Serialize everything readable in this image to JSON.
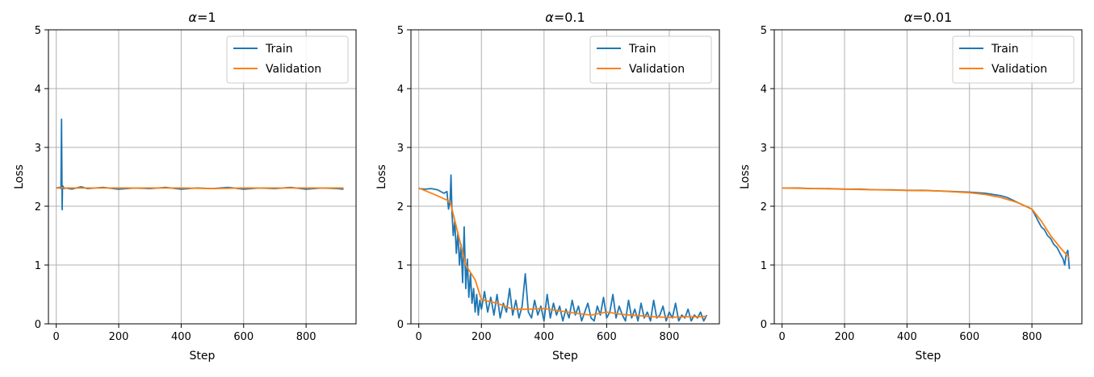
{
  "chart_data": [
    {
      "type": "line",
      "title_symbol": "α",
      "title_value": "=1",
      "xlabel": "Step",
      "ylabel": "Loss",
      "xlim": [
        -25,
        960
      ],
      "ylim": [
        0,
        5
      ],
      "xticks": [
        0,
        200,
        400,
        600,
        800
      ],
      "yticks": [
        0,
        1,
        2,
        3,
        4,
        5
      ],
      "grid": true,
      "legend_position": "top-right",
      "series": [
        {
          "name": "Train",
          "color": "#1f77b4",
          "x": [
            0,
            10,
            15,
            17,
            19,
            20,
            22,
            24,
            30,
            50,
            80,
            100,
            150,
            200,
            250,
            300,
            350,
            400,
            450,
            500,
            550,
            600,
            650,
            700,
            750,
            800,
            850,
            900,
            920
          ],
          "y": [
            2.31,
            2.32,
            2.3,
            3.48,
            1.94,
            2.32,
            2.34,
            2.3,
            2.31,
            2.29,
            2.33,
            2.3,
            2.32,
            2.29,
            2.31,
            2.3,
            2.32,
            2.29,
            2.31,
            2.3,
            2.32,
            2.29,
            2.31,
            2.3,
            2.32,
            2.29,
            2.31,
            2.3,
            2.29
          ]
        },
        {
          "name": "Validation",
          "color": "#ff7f0e",
          "x": [
            0,
            100,
            200,
            300,
            400,
            500,
            600,
            700,
            800,
            900,
            920
          ],
          "y": [
            2.31,
            2.31,
            2.31,
            2.31,
            2.31,
            2.3,
            2.31,
            2.31,
            2.31,
            2.31,
            2.31
          ]
        }
      ]
    },
    {
      "type": "line",
      "title_symbol": "α",
      "title_value": "=0.1",
      "xlabel": "Step",
      "ylabel": "Loss",
      "xlim": [
        -25,
        960
      ],
      "ylim": [
        0,
        5
      ],
      "xticks": [
        0,
        200,
        400,
        600,
        800
      ],
      "yticks": [
        0,
        1,
        2,
        3,
        4,
        5
      ],
      "grid": true,
      "legend_position": "top-right",
      "series": [
        {
          "name": "Train",
          "color": "#1f77b4",
          "x": [
            0,
            20,
            40,
            60,
            80,
            90,
            95,
            100,
            103,
            106,
            110,
            115,
            120,
            125,
            130,
            135,
            140,
            145,
            150,
            155,
            160,
            165,
            170,
            175,
            180,
            185,
            190,
            195,
            200,
            210,
            220,
            230,
            240,
            250,
            260,
            270,
            280,
            290,
            300,
            310,
            320,
            330,
            340,
            350,
            360,
            370,
            380,
            390,
            400,
            410,
            420,
            430,
            440,
            450,
            460,
            470,
            480,
            490,
            500,
            510,
            520,
            530,
            540,
            550,
            560,
            570,
            580,
            590,
            600,
            610,
            620,
            630,
            640,
            650,
            660,
            670,
            680,
            690,
            700,
            710,
            720,
            730,
            740,
            750,
            760,
            770,
            780,
            790,
            800,
            810,
            820,
            830,
            840,
            850,
            860,
            870,
            880,
            890,
            900,
            910,
            920
          ],
          "y": [
            2.3,
            2.29,
            2.3,
            2.28,
            2.22,
            2.25,
            1.95,
            2.1,
            2.53,
            1.9,
            1.5,
            1.75,
            1.2,
            1.55,
            1.0,
            1.35,
            0.7,
            1.65,
            0.6,
            1.1,
            0.45,
            0.85,
            0.35,
            0.6,
            0.2,
            0.5,
            0.15,
            0.4,
            0.25,
            0.55,
            0.2,
            0.45,
            0.15,
            0.5,
            0.1,
            0.35,
            0.2,
            0.6,
            0.15,
            0.4,
            0.1,
            0.3,
            0.85,
            0.2,
            0.1,
            0.4,
            0.15,
            0.3,
            0.05,
            0.5,
            0.1,
            0.35,
            0.15,
            0.3,
            0.05,
            0.25,
            0.1,
            0.4,
            0.15,
            0.3,
            0.05,
            0.2,
            0.35,
            0.1,
            0.05,
            0.3,
            0.15,
            0.45,
            0.1,
            0.2,
            0.5,
            0.1,
            0.3,
            0.15,
            0.05,
            0.4,
            0.1,
            0.25,
            0.05,
            0.35,
            0.1,
            0.2,
            0.05,
            0.4,
            0.1,
            0.15,
            0.3,
            0.05,
            0.2,
            0.1,
            0.35,
            0.05,
            0.15,
            0.1,
            0.25,
            0.05,
            0.15,
            0.1,
            0.2,
            0.05,
            0.15
          ]
        },
        {
          "name": "Validation",
          "color": "#ff7f0e",
          "x": [
            0,
            50,
            100,
            150,
            180,
            200,
            250,
            300,
            350,
            400,
            450,
            500,
            550,
            600,
            650,
            700,
            750,
            800,
            850,
            900,
            920
          ],
          "y": [
            2.31,
            2.2,
            2.08,
            1.0,
            0.75,
            0.41,
            0.35,
            0.25,
            0.25,
            0.26,
            0.22,
            0.18,
            0.15,
            0.2,
            0.16,
            0.14,
            0.12,
            0.11,
            0.12,
            0.12,
            0.13
          ]
        }
      ]
    },
    {
      "type": "line",
      "title_symbol": "α",
      "title_value": "=0.01",
      "xlabel": "Step",
      "ylabel": "Loss",
      "xlim": [
        -25,
        960
      ],
      "ylim": [
        0,
        5
      ],
      "xticks": [
        0,
        200,
        400,
        600,
        800
      ],
      "yticks": [
        0,
        1,
        2,
        3,
        4,
        5
      ],
      "grid": true,
      "legend_position": "top-right",
      "series": [
        {
          "name": "Train",
          "color": "#1f77b4",
          "x": [
            0,
            50,
            100,
            150,
            200,
            250,
            300,
            350,
            400,
            450,
            500,
            550,
            600,
            650,
            700,
            720,
            740,
            760,
            780,
            800,
            810,
            820,
            830,
            840,
            850,
            860,
            870,
            880,
            890,
            900,
            905,
            910,
            915,
            920
          ],
          "y": [
            2.31,
            2.31,
            2.3,
            2.3,
            2.29,
            2.29,
            2.28,
            2.28,
            2.27,
            2.27,
            2.26,
            2.25,
            2.24,
            2.22,
            2.18,
            2.15,
            2.1,
            2.05,
            2.0,
            1.95,
            1.85,
            1.75,
            1.65,
            1.6,
            1.5,
            1.45,
            1.35,
            1.3,
            1.2,
            1.1,
            1.0,
            1.2,
            1.25,
            0.93
          ]
        },
        {
          "name": "Validation",
          "color": "#ff7f0e",
          "x": [
            0,
            100,
            200,
            300,
            400,
            500,
            600,
            650,
            700,
            750,
            800,
            830,
            860,
            890,
            920
          ],
          "y": [
            2.31,
            2.3,
            2.29,
            2.28,
            2.27,
            2.26,
            2.23,
            2.2,
            2.15,
            2.07,
            1.95,
            1.75,
            1.5,
            1.3,
            1.12
          ]
        }
      ]
    }
  ]
}
